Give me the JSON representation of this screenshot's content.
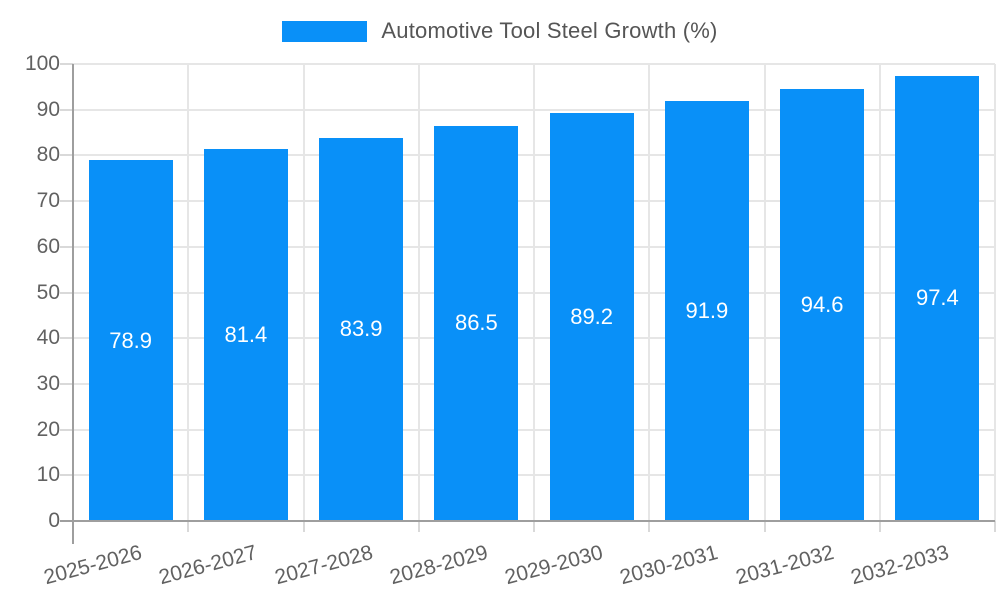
{
  "legend": {
    "label": "Automotive Tool Steel Growth (%)"
  },
  "chart_data": {
    "type": "bar",
    "title": "Automotive Tool Steel Growth (%)",
    "categories": [
      "2025-2026",
      "2026-2027",
      "2027-2028",
      "2028-2029",
      "2029-2030",
      "2030-2031",
      "2031-2032",
      "2032-2033"
    ],
    "values": [
      78.9,
      81.4,
      83.9,
      86.5,
      89.2,
      91.9,
      94.6,
      97.4
    ],
    "value_labels": [
      "78.9",
      "81.4",
      "83.9",
      "86.5",
      "89.2",
      "91.9",
      "94.6",
      "97.4"
    ],
    "xlabel": "",
    "ylabel": "",
    "ylim": [
      0,
      100
    ],
    "y_ticks": [
      "0",
      "10",
      "20",
      "30",
      "40",
      "50",
      "60",
      "70",
      "80",
      "90",
      "100"
    ],
    "grid": true,
    "legend_position": "top"
  },
  "colors": {
    "bar": "#0990f8",
    "value_label": "#ffffff",
    "axis_line": "#9e9e9e",
    "gridline": "#e6e6e6",
    "tick": "#d9d9d9",
    "axis_text": "#616161",
    "legend_text": "#555555",
    "background": "#ffffff"
  }
}
